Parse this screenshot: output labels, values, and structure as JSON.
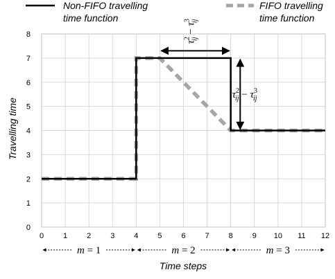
{
  "chart_data": {
    "type": "line",
    "xlabel": "Time steps",
    "ylabel": "Travelling time",
    "xlim": [
      0,
      12
    ],
    "ylim": [
      0,
      8
    ],
    "xticks": [
      0,
      1,
      2,
      3,
      4,
      5,
      6,
      7,
      8,
      9,
      10,
      11,
      12
    ],
    "yticks": [
      0,
      1,
      2,
      3,
      4,
      5,
      6,
      7,
      8
    ],
    "grid": true,
    "legend_position": "top",
    "series": [
      {
        "name": "Non-FIFO travelling time  function",
        "color": "#000000",
        "style": "solid",
        "x": [
          0,
          4,
          4,
          8,
          8,
          12
        ],
        "y": [
          2,
          2,
          7,
          7,
          4,
          4
        ]
      },
      {
        "name": "FIFO travelling time function",
        "color": "#a6a6a6",
        "style": "dashed",
        "x": [
          0,
          4,
          4,
          5,
          8,
          12
        ],
        "y": [
          2,
          2,
          7,
          7,
          4,
          4
        ]
      }
    ],
    "legend": [
      {
        "line1": "Non-FIFO travelling",
        "line2": "time  function"
      },
      {
        "line1": "FIFO travelling",
        "line2": "time function"
      }
    ],
    "annotations": {
      "horizontal_gap": {
        "label": "τ²ij − τ³ij",
        "x_from": 5,
        "x_to": 8,
        "y": 7.3
      },
      "vertical_gap": {
        "label": "τ²ij − τ³ij",
        "x": 8.4,
        "y_from": 7,
        "y_to": 4
      }
    },
    "periods": [
      {
        "label": "m = 1",
        "x_from": 0,
        "x_to": 4
      },
      {
        "label": "m = 2",
        "x_from": 4,
        "x_to": 8
      },
      {
        "label": "m = 3",
        "x_from": 8,
        "x_to": 12
      }
    ]
  }
}
